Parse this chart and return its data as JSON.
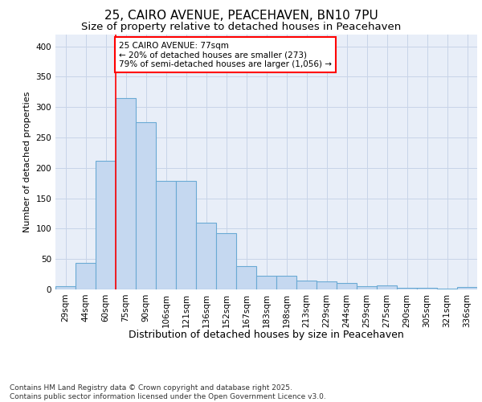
{
  "title1": "25, CAIRO AVENUE, PEACEHAVEN, BN10 7PU",
  "title2": "Size of property relative to detached houses in Peacehaven",
  "xlabel": "Distribution of detached houses by size in Peacehaven",
  "ylabel": "Number of detached properties",
  "categories": [
    "29sqm",
    "44sqm",
    "60sqm",
    "75sqm",
    "90sqm",
    "106sqm",
    "121sqm",
    "136sqm",
    "152sqm",
    "167sqm",
    "183sqm",
    "198sqm",
    "213sqm",
    "229sqm",
    "244sqm",
    "259sqm",
    "275sqm",
    "290sqm",
    "305sqm",
    "321sqm",
    "336sqm"
  ],
  "values": [
    5,
    44,
    212,
    315,
    275,
    179,
    179,
    110,
    92,
    38,
    22,
    23,
    15,
    13,
    10,
    5,
    6,
    3,
    2,
    1,
    4
  ],
  "bar_color": "#c5d8f0",
  "bar_edge_color": "#6aaad4",
  "grid_color": "#c8d4e8",
  "background_color": "#ffffff",
  "plot_bg_color": "#e8eef8",
  "annotation_line1": "25 CAIRO AVENUE: 77sqm",
  "annotation_line2": "← 20% of detached houses are smaller (273)",
  "annotation_line3": "79% of semi-detached houses are larger (1,056) →",
  "vline_x_index": 3.0,
  "footnote_line1": "Contains HM Land Registry data © Crown copyright and database right 2025.",
  "footnote_line2": "Contains public sector information licensed under the Open Government Licence v3.0.",
  "ylim": [
    0,
    420
  ],
  "yticks": [
    0,
    50,
    100,
    150,
    200,
    250,
    300,
    350,
    400
  ],
  "title1_fontsize": 11,
  "title2_fontsize": 9.5,
  "tick_fontsize": 7.5,
  "ylabel_fontsize": 8,
  "xlabel_fontsize": 9,
  "footnote_fontsize": 6.5
}
